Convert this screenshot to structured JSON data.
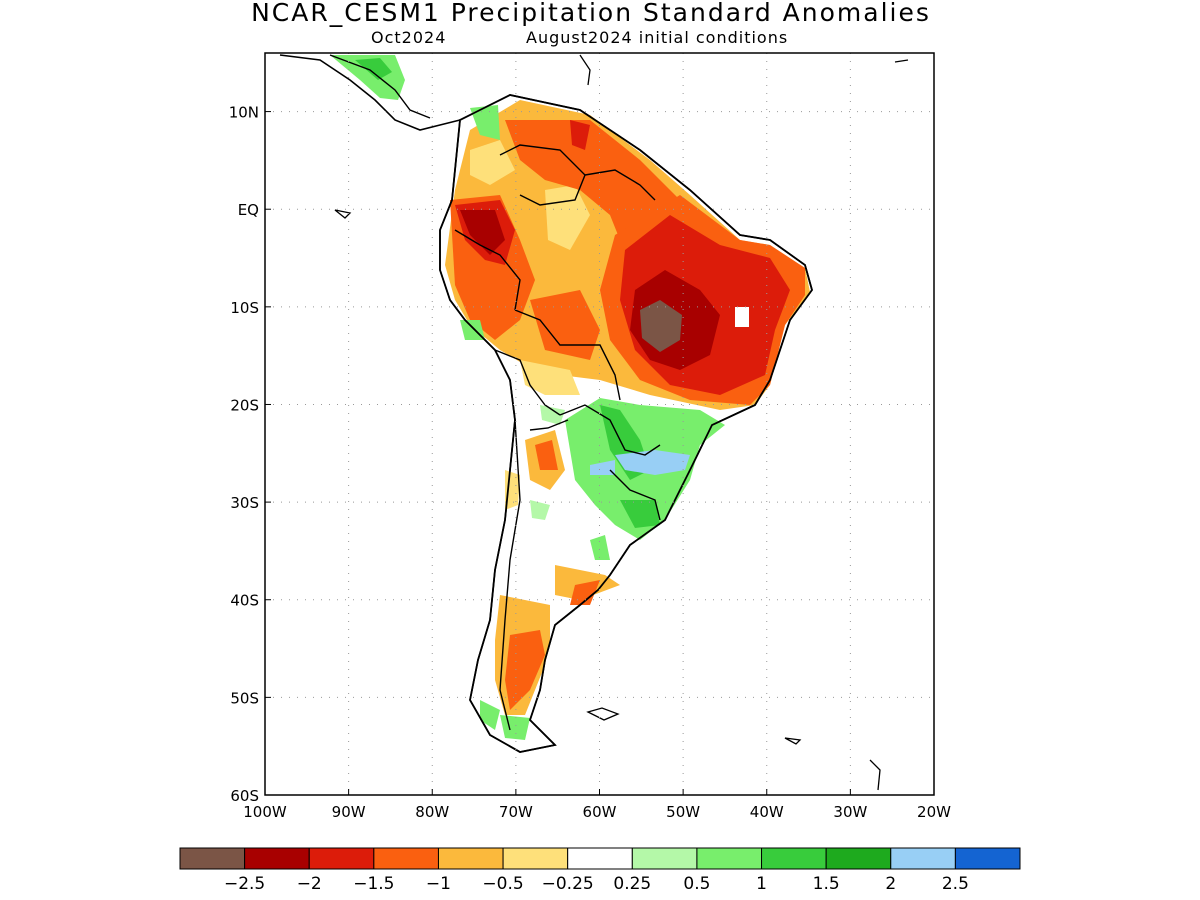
{
  "title": "NCAR_CESM1 Precipitation Standard Anomalies",
  "subtitle_valid": "Oct2024",
  "subtitle_init": "August2024 initial conditions",
  "map": {
    "lon_labels": [
      "100W",
      "90W",
      "80W",
      "70W",
      "60W",
      "50W",
      "40W",
      "30W",
      "20W"
    ],
    "lat_labels": [
      "10N",
      "EQ",
      "10S",
      "20S",
      "30S",
      "40S",
      "50S",
      "60S"
    ],
    "lon_range": [
      -100,
      -20
    ],
    "lat_range": [
      -60,
      16
    ],
    "grid": "dotted",
    "region": "South America"
  },
  "colorbar": {
    "colors": [
      "#7b5546",
      "#a80000",
      "#dc1c0a",
      "#fa6010",
      "#fbb93c",
      "#fee07a",
      "#ffffff",
      "#b4f8a8",
      "#78ee6c",
      "#38cc3c",
      "#1eaa1e",
      "#98cff5",
      "#1464d2"
    ],
    "labels": [
      "−2.5",
      "−2",
      "−1.5",
      "−1",
      "−0.5",
      "−0.25",
      "0.25",
      "0.5",
      "1",
      "1.5",
      "2",
      "2.5"
    ]
  }
}
